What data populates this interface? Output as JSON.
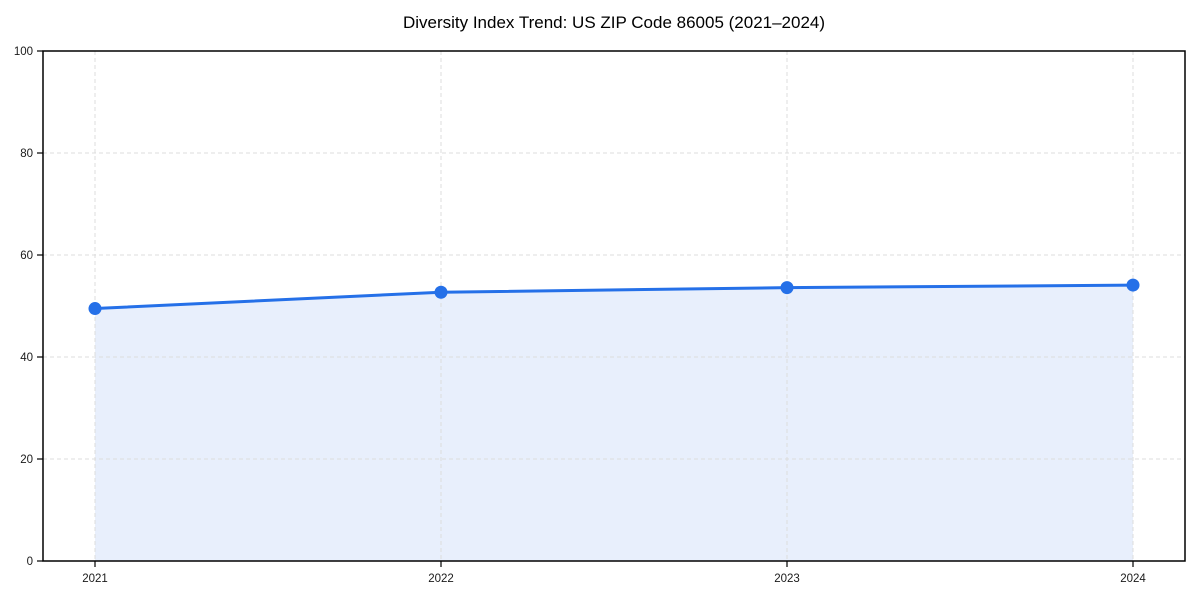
{
  "chart_data": {
    "type": "area",
    "title": "Diversity Index Trend: US ZIP Code 86005 (2021–2024)",
    "categories": [
      "2021",
      "2022",
      "2023",
      "2024"
    ],
    "values": [
      49.5,
      52.7,
      53.6,
      54.1
    ],
    "xlabel": "",
    "ylabel": "",
    "ylim": [
      0,
      100
    ],
    "yticks": [
      0,
      20,
      40,
      60,
      80,
      100
    ],
    "grid": true,
    "grid_style": "dashed",
    "legend": false,
    "colors": {
      "line": "#2570e8",
      "marker": "#2570e8",
      "fill": "#e8effc",
      "grid": "#dcdcdc",
      "axis": "#000000",
      "tick_label": "#1a1a1a",
      "background": "#ffffff"
    }
  }
}
